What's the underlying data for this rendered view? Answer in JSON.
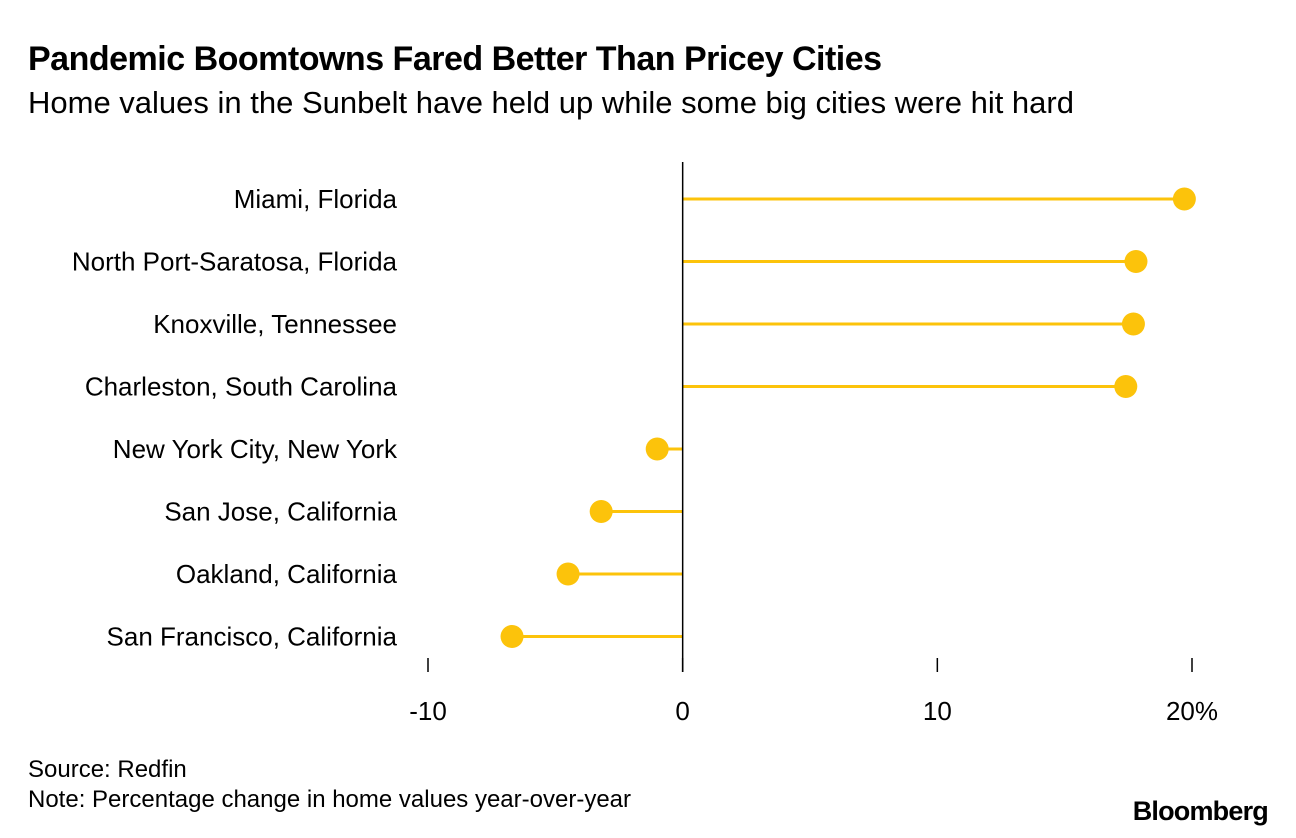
{
  "chart_data": {
    "type": "lollipop",
    "title": "Pandemic Boomtowns Fared Better Than Pricey Cities",
    "subtitle": "Home values in the Sunbelt have held up while some big cities were hit hard",
    "categories": [
      "Miami, Florida",
      "North Port-Saratosa, Florida",
      "Knoxville, Tennessee",
      "Charleston, South Carolina",
      "New York City, New York",
      "San Jose, California",
      "Oakland, California",
      "San Francisco, California"
    ],
    "values": [
      19.7,
      17.8,
      17.7,
      17.4,
      -1.0,
      -3.2,
      -4.5,
      -6.7
    ],
    "xlim": [
      -10,
      20
    ],
    "xticks": [
      -10,
      0,
      10,
      20
    ],
    "xtick_labels": [
      "-10",
      "0",
      "10",
      "20%"
    ],
    "xlabel": "",
    "ylabel": "",
    "grid": false,
    "series_color": "#fcc30b"
  },
  "footer": {
    "source": "Source: Redfin",
    "note": "Note: Percentage change in home values year-over-year",
    "brand": "Bloomberg"
  }
}
